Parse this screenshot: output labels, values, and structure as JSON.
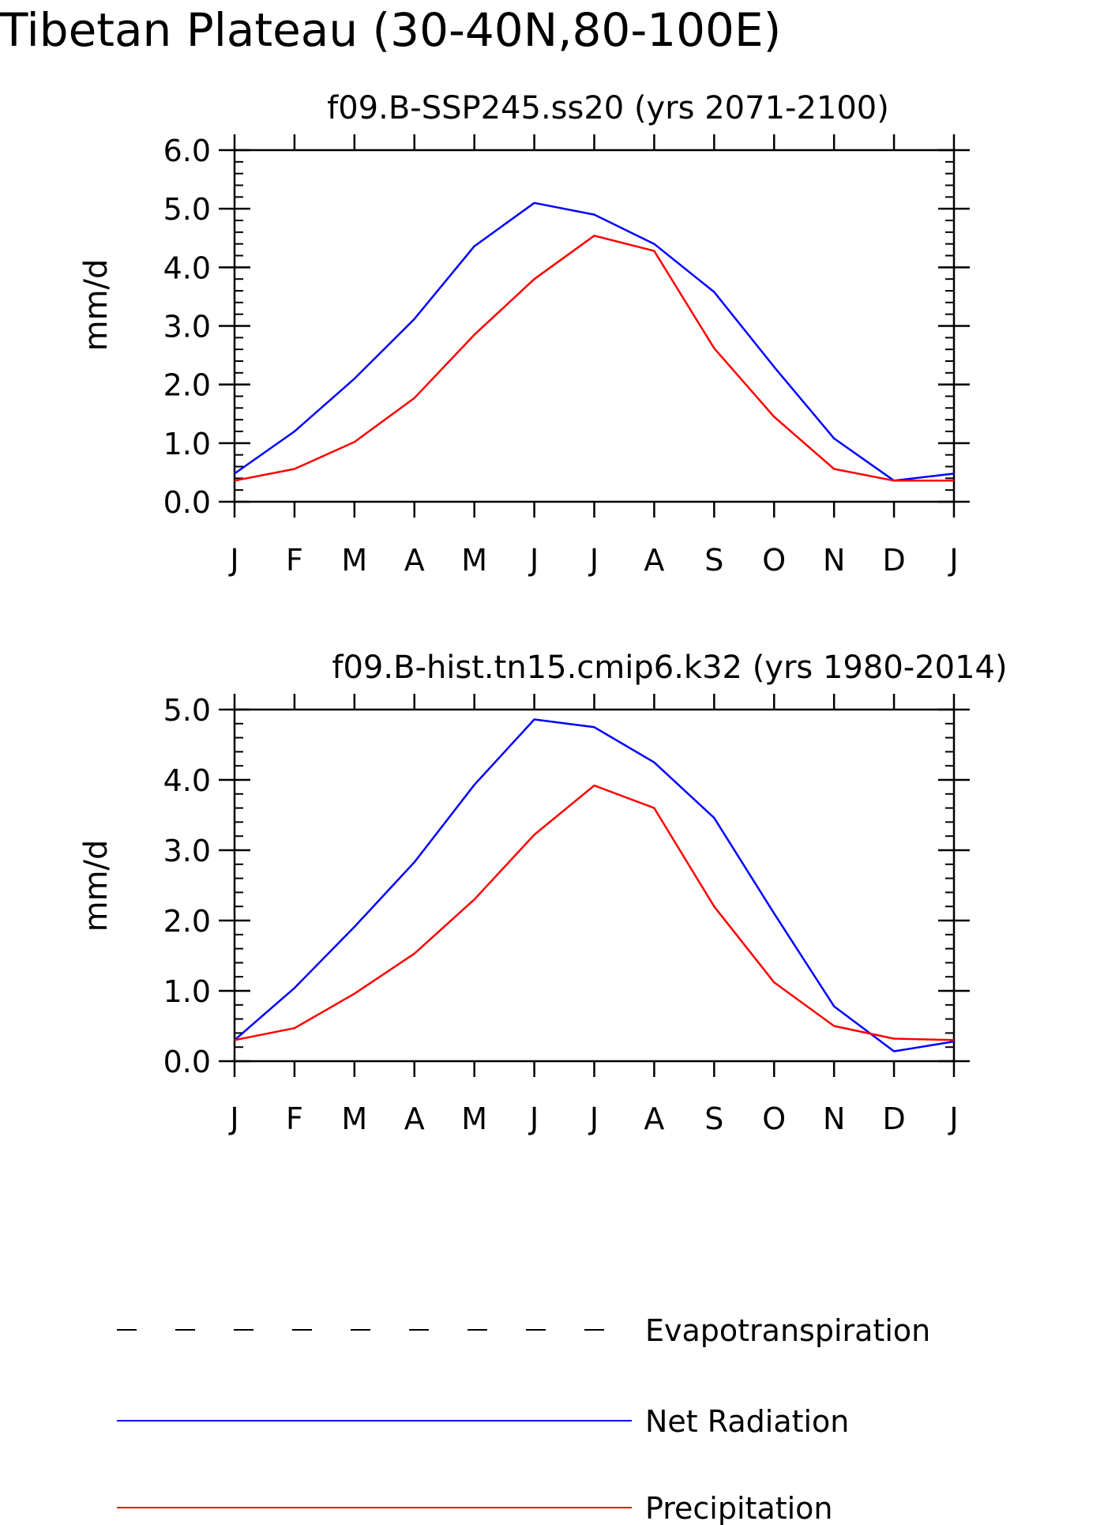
{
  "figure": {
    "title": "Tibetan Plateau (30-40N,80-100E)"
  },
  "legend": {
    "entries": [
      {
        "name": "Evapotranspiration",
        "color": "#000000",
        "style": "dashed"
      },
      {
        "name": "Net Radiation",
        "color": "#0000ff",
        "style": "solid"
      },
      {
        "name": "Precipitation",
        "color": "#ff0000",
        "style": "solid"
      }
    ]
  },
  "chart_data": [
    {
      "type": "line",
      "title": "f09.B-SSP245.ss20 (yrs 2071-2100)",
      "xlabel": "",
      "ylabel": "mm/d",
      "categories": [
        "J",
        "F",
        "M",
        "A",
        "M",
        "J",
        "J",
        "A",
        "S",
        "O",
        "N",
        "D",
        "J"
      ],
      "ylim": [
        0,
        6
      ],
      "yticks": [
        "0.0",
        "1.0",
        "2.0",
        "3.0",
        "4.0",
        "5.0",
        "6.0"
      ],
      "grid": false,
      "series": [
        {
          "name": "Net Radiation",
          "color": "#0000ff",
          "values": [
            0.48,
            1.2,
            2.1,
            3.12,
            4.36,
            5.1,
            4.9,
            4.4,
            3.58,
            2.3,
            1.08,
            0.36,
            0.48
          ]
        },
        {
          "name": "Precipitation",
          "color": "#ff0000",
          "values": [
            0.36,
            0.56,
            1.02,
            1.77,
            2.85,
            3.8,
            4.54,
            4.28,
            2.62,
            1.45,
            0.56,
            0.36,
            0.36
          ]
        }
      ]
    },
    {
      "type": "line",
      "title": "f09.B-hist.tn15.cmip6.k32 (yrs 1980-2014)",
      "xlabel": "",
      "ylabel": "mm/d",
      "categories": [
        "J",
        "F",
        "M",
        "A",
        "M",
        "J",
        "J",
        "A",
        "S",
        "O",
        "N",
        "D",
        "J"
      ],
      "ylim": [
        0,
        5
      ],
      "yticks": [
        "0.0",
        "1.0",
        "2.0",
        "3.0",
        "4.0",
        "5.0"
      ],
      "grid": false,
      "series": [
        {
          "name": "Net Radiation",
          "color": "#0000ff",
          "values": [
            0.3,
            1.04,
            1.91,
            2.83,
            3.93,
            4.86,
            4.75,
            4.25,
            3.46,
            2.1,
            0.78,
            0.14,
            0.28
          ]
        },
        {
          "name": "Precipitation",
          "color": "#ff0000",
          "values": [
            0.3,
            0.47,
            0.96,
            1.53,
            2.3,
            3.22,
            3.92,
            3.6,
            2.2,
            1.12,
            0.5,
            0.32,
            0.3
          ]
        }
      ]
    }
  ]
}
